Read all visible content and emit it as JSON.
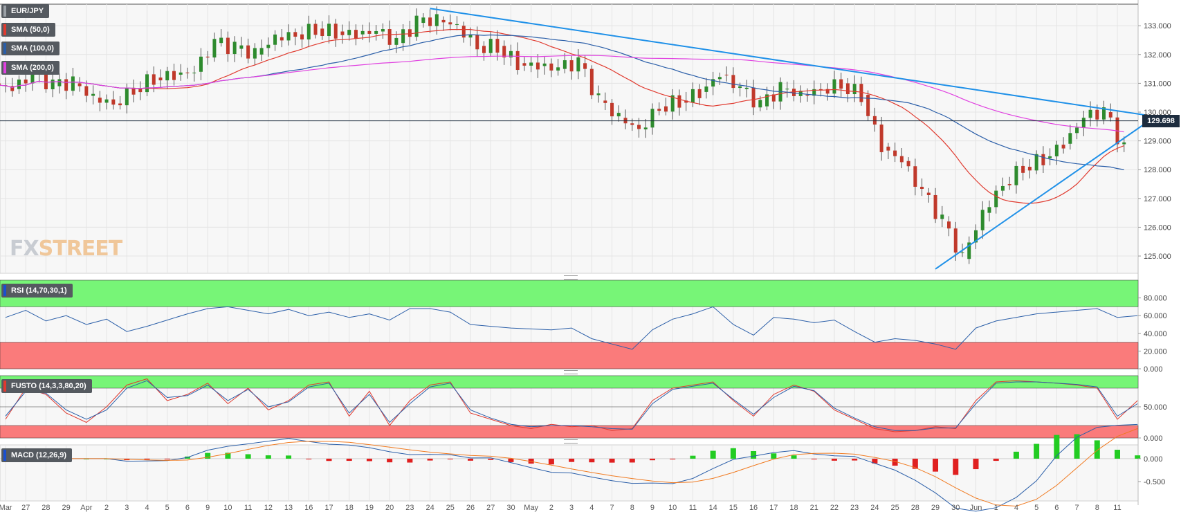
{
  "chart_data": [
    {
      "type": "candlestick",
      "title": "EUR/JPY",
      "indicators": [
        {
          "name": "SMA (50,0)",
          "color": "#e03a2f"
        },
        {
          "name": "SMA (100,0)",
          "color": "#2a5ea8"
        },
        {
          "name": "SMA (200,0)",
          "color": "#e040e0"
        }
      ],
      "last_price": "129.698",
      "y_ticks": [
        "133.000",
        "132.000",
        "131.000",
        "130.000",
        "129.000",
        "128.000",
        "127.000",
        "126.000",
        "125.000"
      ],
      "ylim": [
        124.4,
        133.75
      ],
      "x_ticks": [
        "Mar",
        "27",
        "28",
        "29",
        "Apr",
        "2",
        "3",
        "4",
        "5",
        "6",
        "9",
        "10",
        "11",
        "12",
        "13",
        "16",
        "17",
        "18",
        "19",
        "20",
        "23",
        "24",
        "25",
        "26",
        "27",
        "30",
        "May",
        "2",
        "3",
        "4",
        "7",
        "8",
        "9",
        "10",
        "11",
        "14",
        "15",
        "16",
        "17",
        "18",
        "21",
        "22",
        "23",
        "24",
        "25",
        "28",
        "29",
        "30",
        "Jun",
        "1",
        "4",
        "5",
        "6",
        "7",
        "8",
        "11"
      ],
      "close_approx": [
        130.8,
        131.3,
        130.9,
        131.0,
        130.5,
        130.3,
        130.8,
        131.2,
        131.3,
        131.4,
        132.4,
        132.2,
        132.0,
        132.6,
        132.7,
        132.9,
        132.8,
        132.7,
        132.8,
        132.4,
        133.1,
        133.2,
        133.0,
        132.3,
        132.3,
        131.7,
        131.6,
        131.5,
        131.7,
        130.4,
        129.8,
        129.4,
        130.2,
        130.4,
        130.7,
        131.3,
        130.8,
        130.2,
        130.8,
        130.6,
        130.8,
        131.0,
        130.6,
        128.8,
        128.3,
        127.2,
        126.2,
        124.9,
        126.5,
        127.5,
        128.1,
        128.4,
        128.9,
        129.8,
        130.0,
        128.7,
        129.7
      ],
      "trendlines": [
        {
          "from": [
            "24",
            133.6
          ],
          "to": [
            "11",
            129.95
          ],
          "color": "#1e90e8"
        },
        {
          "from": [
            "29",
            124.55
          ],
          "to": [
            "11",
            129.2
          ],
          "color": "#1e90e8"
        }
      ],
      "watermark": "FXSTREET"
    },
    {
      "type": "line",
      "title": "RSI (14,70,30,1)",
      "y_ticks": [
        "80.000",
        "60.000",
        "40.000",
        "20.000",
        "0.000"
      ],
      "ylim": [
        0,
        100
      ],
      "zones": {
        "overbought": 70,
        "oversold": 30
      },
      "values_approx": [
        58,
        66,
        54,
        60,
        50,
        56,
        42,
        48,
        55,
        62,
        68,
        70,
        66,
        62,
        67,
        60,
        64,
        58,
        62,
        55,
        68,
        68,
        64,
        50,
        48,
        46,
        45,
        44,
        46,
        34,
        28,
        22,
        44,
        56,
        62,
        70,
        50,
        38,
        58,
        56,
        52,
        55,
        42,
        30,
        34,
        32,
        28,
        22,
        46,
        54,
        58,
        62,
        64,
        66,
        68,
        58,
        60
      ]
    },
    {
      "type": "line",
      "title": "FUSTO (14,3,3,80,20)",
      "y_ticks": [
        "50.000",
        "0.000"
      ],
      "ylim": [
        0,
        100
      ],
      "zones": {
        "overbought": 80,
        "oversold": 20
      },
      "series": [
        {
          "color": "#e03a2f",
          "values_approx": [
            30,
            80,
            70,
            40,
            25,
            50,
            85,
            95,
            60,
            70,
            88,
            55,
            80,
            45,
            60,
            85,
            90,
            35,
            75,
            20,
            60,
            85,
            90,
            40,
            30,
            20,
            15,
            22,
            18,
            20,
            12,
            15,
            60,
            80,
            85,
            90,
            60,
            35,
            70,
            85,
            75,
            45,
            30,
            15,
            10,
            12,
            18,
            15,
            60,
            90,
            92,
            90,
            88,
            85,
            80,
            30,
            60
          ]
        },
        {
          "color": "#2a5ea8",
          "values_approx": [
            35,
            75,
            72,
            45,
            30,
            45,
            80,
            92,
            65,
            68,
            85,
            60,
            78,
            50,
            58,
            82,
            88,
            40,
            70,
            25,
            55,
            82,
            88,
            45,
            32,
            22,
            18,
            20,
            20,
            18,
            15,
            14,
            55,
            78,
            83,
            88,
            62,
            38,
            65,
            83,
            76,
            48,
            32,
            18,
            12,
            12,
            16,
            16,
            55,
            88,
            90,
            90,
            88,
            86,
            82,
            35,
            55
          ]
        }
      ]
    },
    {
      "type": "bar+line",
      "title": "MACD (12,26,9)",
      "y_ticks": [
        "0.000",
        "-0.500"
      ],
      "ylim": [
        -0.92,
        0.3
      ],
      "series": [
        {
          "name": "MACD",
          "color": "#2a5ea8"
        },
        {
          "name": "Signal",
          "color": "#f07a20"
        },
        {
          "name": "Histogram",
          "colors": [
            "#22cc22",
            "#e02020"
          ]
        }
      ]
    }
  ]
}
